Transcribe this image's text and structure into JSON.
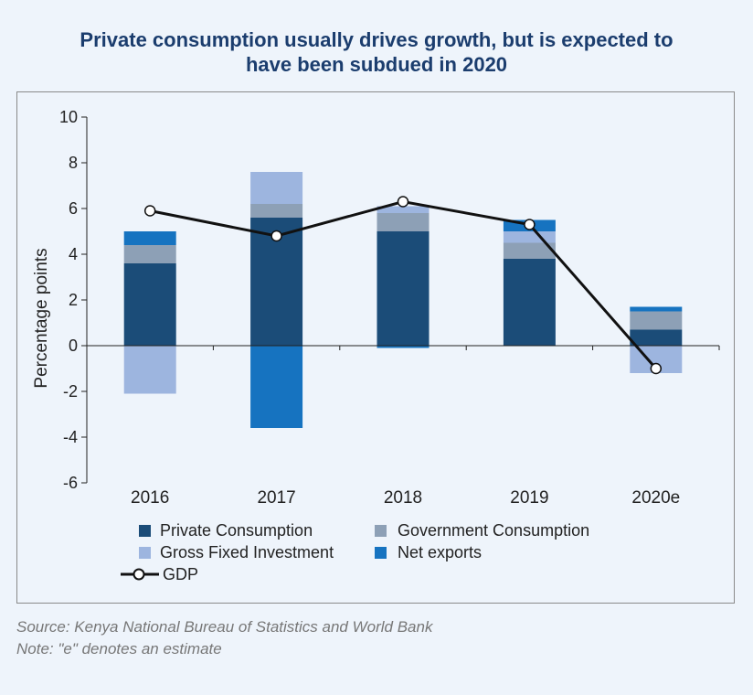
{
  "colors": {
    "private_consumption": "#1b4c78",
    "government_consumption": "#8da0b6",
    "gross_fixed_investment": "#9db5df",
    "net_exports": "#1673c0",
    "gdp_line": "#111111",
    "title": "#1b3d6e"
  },
  "chart_data": {
    "type": "bar",
    "stacked": true,
    "title": "Private consumption usually drives growth, but is expected to have been subdued in 2020",
    "title_lines": [
      "Private consumption usually drives growth, but is expected to",
      "have been subdued in 2020"
    ],
    "ylabel": "Percentage points",
    "xlabel": "",
    "ylim": [
      -6,
      10
    ],
    "yticks": [
      "10",
      "8",
      "6",
      "4",
      "2",
      "0",
      "-2",
      "-4",
      "-6"
    ],
    "ytick_values": [
      10,
      8,
      6,
      4,
      2,
      0,
      -2,
      -4,
      -6
    ],
    "categories": [
      "2016",
      "2017",
      "2018",
      "2019",
      "2020e"
    ],
    "legend_position": "bottom",
    "series": [
      {
        "name": "Private Consumption",
        "key": "private_consumption",
        "values": [
          3.6,
          5.6,
          5.0,
          3.8,
          0.7
        ]
      },
      {
        "name": "Government Consumption",
        "key": "government_consumption",
        "values": [
          0.8,
          0.6,
          0.8,
          0.7,
          0.8
        ]
      },
      {
        "name": "Gross Fixed Investment",
        "key": "gross_fixed_investment",
        "values": [
          -2.1,
          1.4,
          0.3,
          0.5,
          -1.2
        ]
      },
      {
        "name": "Net exports",
        "key": "net_exports",
        "values": [
          0.6,
          -3.6,
          -0.1,
          0.5,
          0.2
        ]
      }
    ],
    "line": {
      "name": "GDP",
      "key": "gdp_line",
      "values": [
        5.9,
        4.8,
        6.3,
        5.3,
        -1.0
      ]
    }
  },
  "legend": {
    "items": [
      {
        "label": "Private Consumption",
        "key": "private_consumption"
      },
      {
        "label": "Government Consumption",
        "key": "government_consumption"
      },
      {
        "label": "Gross Fixed Investment",
        "key": "gross_fixed_investment"
      },
      {
        "label": "Net exports",
        "key": "net_exports"
      }
    ],
    "line_label": "GDP"
  },
  "source": {
    "line1": "Source: Kenya National Bureau of Statistics and World Bank",
    "line2": "Note: \"e\" denotes an estimate"
  }
}
